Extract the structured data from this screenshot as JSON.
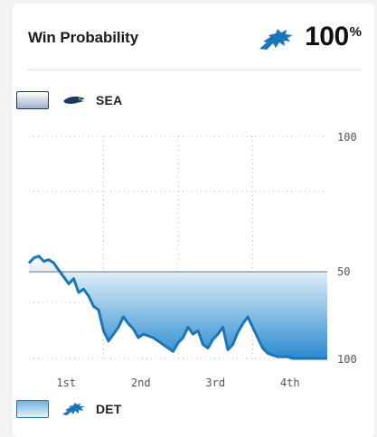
{
  "header": {
    "title": "Win Probability",
    "leader_value": "100",
    "leader_unit": "%",
    "leader_logo": "lions-logo-icon"
  },
  "legend": {
    "top": {
      "team": "SEA",
      "logo": "seahawks-logo-icon"
    },
    "bottom": {
      "team": "DET",
      "logo": "lions-logo-icon"
    }
  },
  "colors": {
    "line": "#1b75b6",
    "fill_top": "#ffffff",
    "fill_bottom": "#2b8bd0",
    "midline": "#7f8a96"
  },
  "chart_data": {
    "type": "area",
    "title": "Win Probability",
    "xlabel": "",
    "ylabel": "",
    "x_tick_labels": [
      "1st",
      "2nd",
      "3rd",
      "4th"
    ],
    "y_tick_labels": [
      "100",
      "50",
      "100"
    ],
    "xlim": [
      0,
      60
    ],
    "ylim": [
      0,
      100
    ],
    "baseline": 50,
    "grid": true,
    "series": [
      {
        "name": "DET",
        "x": [
          0,
          1,
          2,
          3,
          4,
          5,
          6,
          7,
          8,
          9,
          10,
          11,
          12,
          13,
          14,
          15,
          16,
          17,
          18,
          19,
          20,
          21,
          22,
          23,
          24,
          25,
          26,
          27,
          28,
          29,
          30,
          31,
          32,
          33,
          34,
          35,
          36,
          37,
          38,
          39,
          40,
          41,
          42,
          43,
          44,
          45,
          46,
          47,
          48,
          49,
          50,
          51,
          52,
          53,
          54,
          55,
          56,
          57,
          58,
          59,
          60
        ],
        "values": [
          55,
          58,
          59,
          56,
          57,
          55,
          51,
          47,
          43,
          46,
          38,
          40,
          36,
          30,
          28,
          16,
          10,
          14,
          18,
          24,
          20,
          17,
          12,
          14,
          13,
          12,
          10,
          8,
          6,
          4,
          9,
          12,
          18,
          14,
          16,
          8,
          6,
          11,
          14,
          18,
          5,
          8,
          15,
          20,
          24,
          18,
          12,
          6,
          3,
          2,
          1,
          1,
          1,
          0,
          0,
          0,
          0,
          0,
          0,
          0,
          0
        ]
      }
    ]
  }
}
